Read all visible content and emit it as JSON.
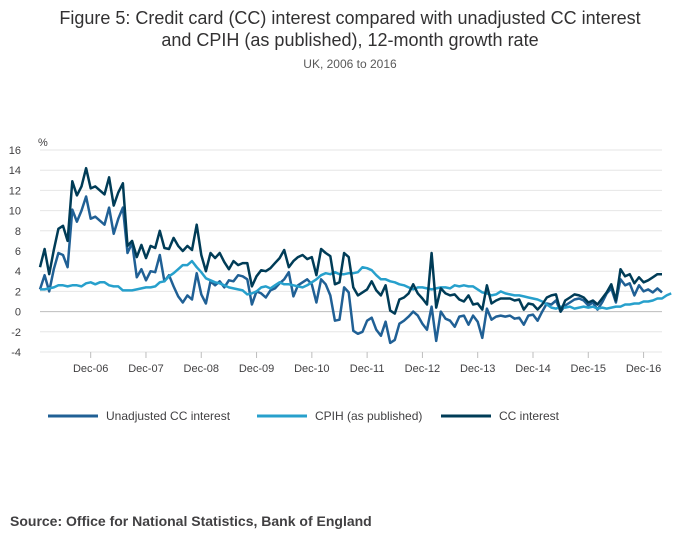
{
  "chart_data": {
    "type": "line",
    "title_line1": "Figure 5: Credit card (CC) interest compared with unadjusted CC interest",
    "title_line2": "and CPIH (as published), 12-month growth rate",
    "subtitle": "UK, 2006 to 2016",
    "ylabel": "%",
    "ylim": [
      -4,
      16
    ],
    "yticks": [
      "16",
      "14",
      "12",
      "10",
      "8",
      "6",
      "4",
      "2",
      "0",
      "-2",
      "-4"
    ],
    "ytick_values": [
      16,
      14,
      12,
      10,
      8,
      6,
      4,
      2,
      0,
      -2,
      -4
    ],
    "xticks": [
      "Dec-06",
      "Dec-07",
      "Dec-08",
      "Dec-09",
      "Dec-10",
      "Dec-11",
      "Dec-12",
      "Dec-13",
      "Dec-14",
      "Dec-15",
      "Dec-16"
    ],
    "x_start": "Jan-06",
    "x_end": "Dec-16",
    "grid": true,
    "legend_position": "bottom",
    "series": [
      {
        "name": "Unadjusted CC interest",
        "color": "#206095",
        "values": [
          2.2,
          3.6,
          2.0,
          4.2,
          5.8,
          5.6,
          4.4,
          10.1,
          8.9,
          10.0,
          11.4,
          9.2,
          9.4,
          9.0,
          8.6,
          10.3,
          7.7,
          9.2,
          10.3,
          5.8,
          6.8,
          3.4,
          4.2,
          3.1,
          4.0,
          3.9,
          5.6,
          3.0,
          3.6,
          2.5,
          1.5,
          0.9,
          1.6,
          1.2,
          3.8,
          1.7,
          0.8,
          3.0,
          2.6,
          3.0,
          2.4,
          3.1,
          3.0,
          3.6,
          3.5,
          3.2,
          0.7,
          2.0,
          1.8,
          1.4,
          2.1,
          2.3,
          2.8,
          3.2,
          3.9,
          1.5,
          2.6,
          2.9,
          3.2,
          2.7,
          0.9,
          3.2,
          2.7,
          1.6,
          -0.9,
          -0.8,
          2.4,
          1.9,
          -1.9,
          -2.2,
          -2.0,
          -0.9,
          -0.6,
          -1.8,
          -2.4,
          -1.0,
          -3.1,
          -2.8,
          -1.2,
          -0.9,
          -0.5,
          0.0,
          -0.4,
          -1.2,
          -1.8,
          0.5,
          -2.9,
          0.0,
          -0.7,
          -0.9,
          -1.5,
          -0.5,
          -0.4,
          -1.3,
          -0.4,
          -1.0,
          -2.6,
          0.3,
          -0.8,
          -0.5,
          -0.4,
          -0.5,
          -0.4,
          -0.7,
          -0.6,
          -1.3,
          -0.4,
          -0.3,
          -0.9,
          0.0,
          0.8,
          0.7,
          1.1,
          0.0,
          0.6,
          0.9,
          1.2,
          1.3,
          1.1,
          0.6,
          0.9,
          0.2,
          0.9,
          1.8,
          2.3,
          0.9,
          3.2,
          2.6,
          2.8,
          1.6,
          2.6,
          2.0,
          2.2,
          1.9,
          2.3,
          1.9
        ]
      },
      {
        "name": "CPIH (as published)",
        "color": "#27a0cc",
        "values": [
          2.2,
          2.2,
          2.3,
          2.4,
          2.6,
          2.6,
          2.5,
          2.6,
          2.6,
          2.5,
          2.8,
          2.9,
          2.7,
          2.9,
          2.9,
          2.6,
          2.5,
          2.5,
          2.1,
          2.1,
          2.1,
          2.2,
          2.3,
          2.4,
          2.4,
          2.5,
          2.9,
          3.0,
          3.5,
          3.8,
          4.2,
          4.6,
          4.6,
          5.0,
          4.4,
          3.9,
          3.3,
          3.1,
          2.9,
          2.8,
          2.6,
          2.4,
          2.3,
          2.2,
          2.1,
          1.7,
          1.8,
          2.0,
          2.4,
          2.5,
          2.3,
          2.6,
          2.9,
          2.7,
          2.7,
          2.6,
          2.5,
          2.4,
          2.6,
          2.9,
          3.2,
          3.6,
          3.8,
          3.7,
          3.9,
          3.7,
          3.7,
          3.8,
          3.8,
          3.9,
          4.4,
          4.3,
          4.1,
          3.6,
          3.2,
          3.2,
          3.0,
          2.9,
          2.7,
          2.6,
          2.4,
          2.2,
          2.4,
          2.4,
          2.3,
          2.2,
          2.3,
          2.4,
          2.4,
          2.3,
          2.6,
          2.5,
          2.6,
          2.5,
          2.5,
          2.2,
          1.9,
          1.8,
          1.6,
          1.7,
          2.0,
          1.8,
          1.7,
          1.6,
          1.6,
          1.5,
          1.4,
          1.3,
          1.2,
          1.0,
          0.7,
          0.4,
          0.3,
          0.5,
          0.4,
          0.5,
          0.3,
          0.4,
          0.5,
          0.4,
          0.5,
          0.3,
          0.4,
          0.3,
          0.4,
          0.5,
          0.5,
          0.7,
          0.7,
          0.8,
          0.8,
          1.0,
          1.0,
          1.1,
          1.3,
          1.3,
          1.6,
          1.8
        ]
      },
      {
        "name": "CC interest",
        "color": "#003c57",
        "values": [
          4.4,
          6.2,
          3.7,
          6.1,
          8.2,
          8.5,
          7.0,
          12.9,
          11.5,
          12.4,
          14.2,
          12.2,
          12.4,
          12.0,
          11.6,
          13.3,
          10.5,
          11.8,
          12.7,
          6.5,
          7.0,
          5.4,
          6.6,
          5.3,
          6.5,
          6.3,
          8.0,
          6.3,
          6.2,
          7.3,
          6.5,
          6.0,
          6.5,
          6.1,
          8.6,
          5.6,
          4.0,
          5.8,
          5.3,
          5.8,
          4.9,
          4.2,
          5.0,
          4.6,
          4.8,
          4.8,
          2.5,
          3.5,
          4.1,
          4.0,
          4.3,
          4.8,
          5.3,
          6.1,
          4.4,
          5.0,
          5.4,
          5.6,
          5.2,
          5.4,
          3.6,
          6.2,
          5.8,
          5.5,
          2.7,
          2.9,
          5.8,
          5.4,
          2.4,
          1.6,
          1.9,
          2.2,
          3.0,
          2.1,
          1.6,
          2.6,
          0.1,
          -0.2,
          1.2,
          1.4,
          1.8,
          2.7,
          1.8,
          1.3,
          0.7,
          5.8,
          0.4,
          2.3,
          1.8,
          1.6,
          1.7,
          1.2,
          1.0,
          1.6,
          0.7,
          0.8,
          0.2,
          2.6,
          0.8,
          1.1,
          1.3,
          1.3,
          1.3,
          1.1,
          1.2,
          0.2,
          0.8,
          0.7,
          0.2,
          0.7,
          1.4,
          1.6,
          1.7,
          0.0,
          1.1,
          1.4,
          1.7,
          1.6,
          1.4,
          0.9,
          1.1,
          0.7,
          1.3,
          1.9,
          2.7,
          1.1,
          4.2,
          3.5,
          3.7,
          2.8,
          3.4,
          2.9,
          3.1,
          3.4,
          3.7,
          3.7
        ]
      }
    ]
  },
  "source": "Source: Office for National Statistics, Bank of England"
}
